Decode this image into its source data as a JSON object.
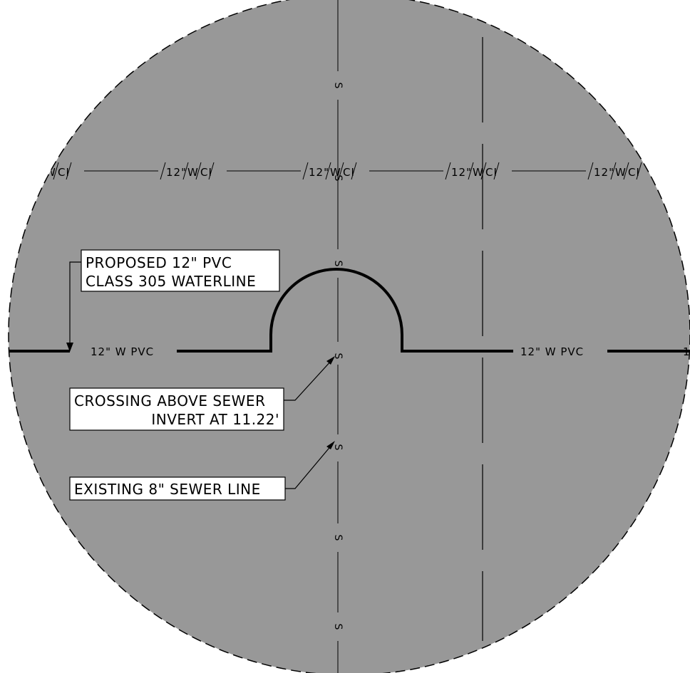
{
  "callouts": {
    "proposed_line1": "PROPOSED 12\" PVC",
    "proposed_line2": "CLASS 305 WATERLINE",
    "crossing_line1": "CROSSING ABOVE SEWER",
    "crossing_line2": "INVERT AT 11.22'",
    "existing": "EXISTING 8\" SEWER LINE"
  },
  "waterline_labels": {
    "left": "12\" W PVC",
    "right": "12\" W PVC",
    "edge": "1"
  },
  "existing_waterline": {
    "segment_text": "12\"",
    "w": "W",
    "ci": "CI"
  },
  "sewer": {
    "marker": "S"
  },
  "colors": {
    "background": "#989898",
    "linework": "#000000",
    "callout_box": "#ffffff"
  }
}
